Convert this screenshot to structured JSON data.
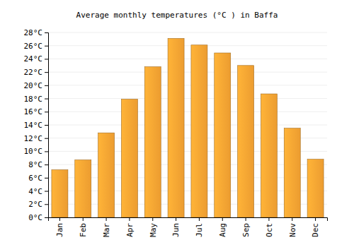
{
  "chart_data": {
    "type": "bar",
    "title": "Average monthly temperatures (°C ) in Baffa",
    "categories": [
      "Jan",
      "Feb",
      "Mar",
      "Apr",
      "May",
      "Jun",
      "Jul",
      "Aug",
      "Sep",
      "Oct",
      "Nov",
      "Dec"
    ],
    "values": [
      7.2,
      8.7,
      12.8,
      17.9,
      22.8,
      27.1,
      26.1,
      24.9,
      23.0,
      18.7,
      13.5,
      8.8
    ],
    "color": "#f9a533",
    "ylim": [
      0,
      28
    ],
    "yticks": [
      {
        "value": 0,
        "label": "0°C"
      },
      {
        "value": 2,
        "label": "2°C"
      },
      {
        "value": 4,
        "label": "4°C"
      },
      {
        "value": 6,
        "label": "6°C"
      },
      {
        "value": 8,
        "label": "8°C"
      },
      {
        "value": 10,
        "label": "10°C"
      },
      {
        "value": 12,
        "label": "12°C"
      },
      {
        "value": 14,
        "label": "14°C"
      },
      {
        "value": 16,
        "label": "16°C"
      },
      {
        "value": 18,
        "label": "18°C"
      },
      {
        "value": 20,
        "label": "20°C"
      },
      {
        "value": 22,
        "label": "22°C"
      },
      {
        "value": 24,
        "label": "24°C"
      },
      {
        "value": 26,
        "label": "26°C"
      },
      {
        "value": 28,
        "label": "28°C"
      }
    ],
    "grid": true
  }
}
